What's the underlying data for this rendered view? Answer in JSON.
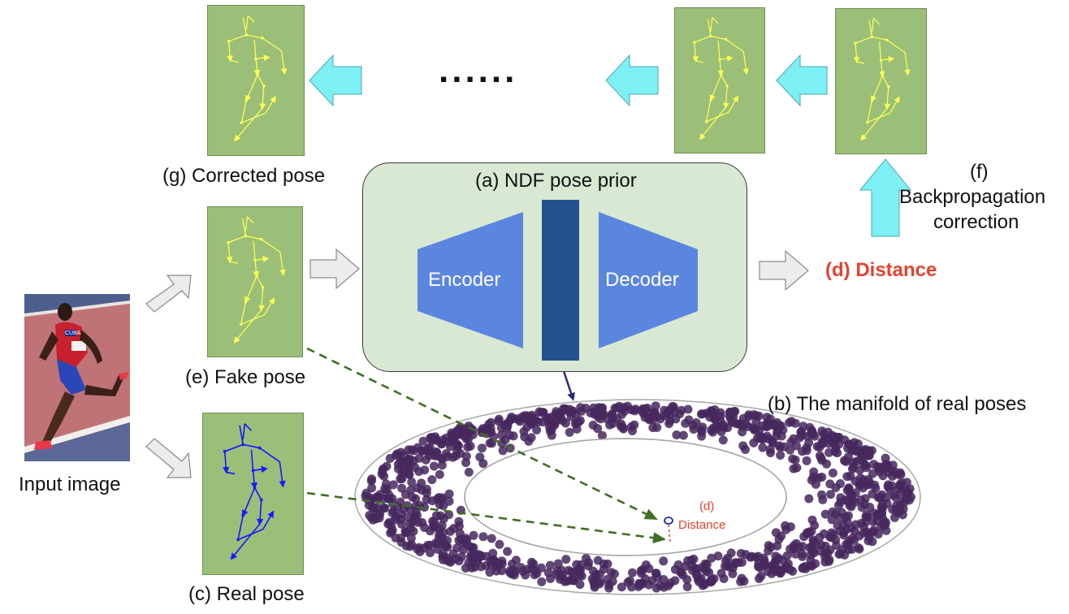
{
  "labels": {
    "ndf_pose_prior": "(a) NDF pose prior",
    "encoder": "Encoder",
    "decoder": "Decoder",
    "distance_main": "(d) Distance",
    "manifold": "(b) The manifold of real poses",
    "corrected_pose": "(g) Corrected pose",
    "fake_pose": "(e) Fake pose",
    "real_pose": "(c) Real pose",
    "input_image": "Input image",
    "backprop_letter": "(f)",
    "backprop_line1": "Backpropagation",
    "backprop_line2": "correction",
    "ellipsis": "......",
    "distance_small_letter": "(d)",
    "distance_small_word": "Distance",
    "jersey_text": "CUBA"
  },
  "colors": {
    "pose_bg": "#9bbf78",
    "skeleton_fake": "#ffff55",
    "skeleton_real": "#1a1aff",
    "ndf_box": "#d8e8d2",
    "encoder": "#5b86e0",
    "latent": "#22538f",
    "arrow_cyan": "#7df0f5",
    "arrow_gray": "#ececec",
    "manifold_dots": "#46285e",
    "dashed_arrow": "#3f6e25",
    "distance_red": "#e8412e"
  }
}
